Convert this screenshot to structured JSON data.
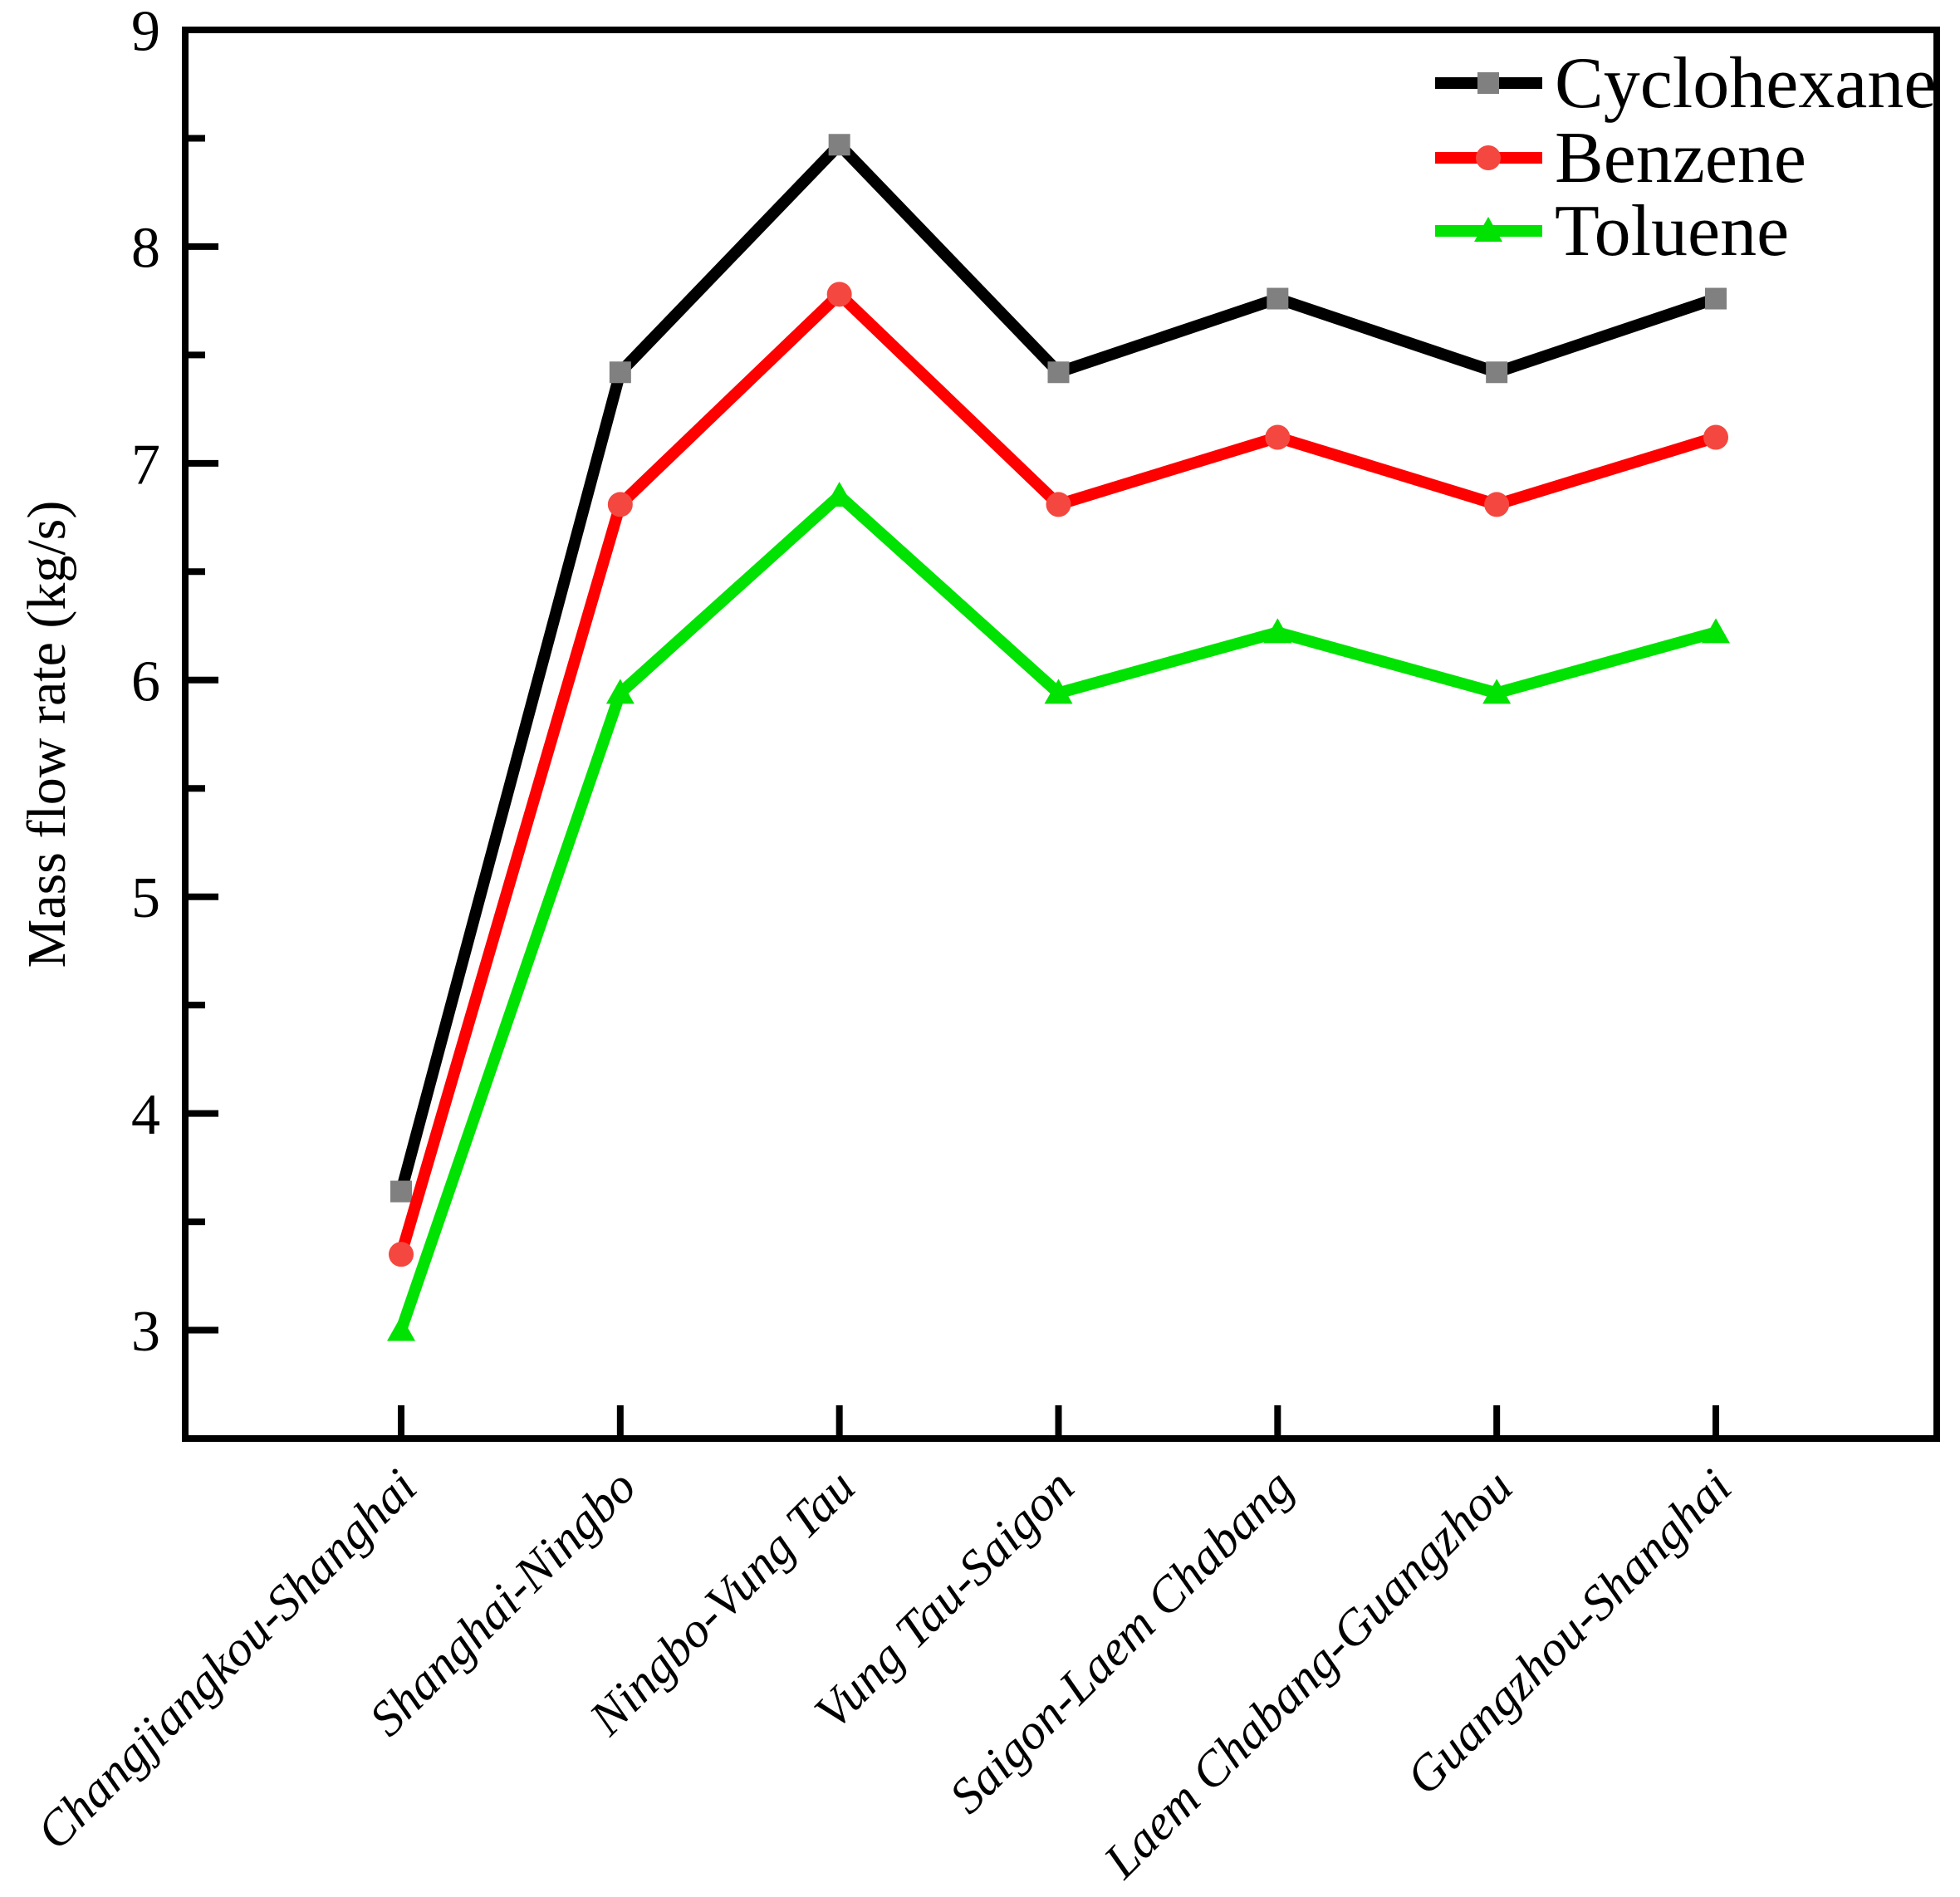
{
  "figure": {
    "background": "#ffffff",
    "frame_color": "#000000"
  },
  "chart_data": {
    "type": "line",
    "title": "",
    "xlabel": "",
    "ylabel": "Mass flow rate (kg/s)",
    "ylim": [
      2.5,
      9
    ],
    "yticks_major": [
      3,
      4,
      5,
      6,
      7,
      8,
      9
    ],
    "yticks_minor": [
      3.5,
      4.5,
      5.5,
      6.5,
      7.5,
      8.5
    ],
    "grid": false,
    "legend_position": "top-right",
    "categories": [
      "Changjiangkou-Shanghai",
      "Shanghai-Ningbo",
      "Ningbo-Vung Tau",
      "Vung Tau-Saigon",
      "Saigon-Laem Chabang",
      "Laem Chabang-Guangzhou",
      "Guangzhou-Shanghai"
    ],
    "series": [
      {
        "name": "Cyclohexane",
        "line_color": "#000000",
        "marker": "square",
        "marker_color": "#808080",
        "values": [
          3.64,
          7.42,
          8.47,
          7.42,
          7.76,
          7.42,
          7.76
        ]
      },
      {
        "name": "Benzene",
        "line_color": "#ff0000",
        "marker": "circle",
        "marker_color": "#f4473f",
        "values": [
          3.35,
          6.81,
          7.78,
          6.81,
          7.12,
          6.81,
          7.12
        ]
      },
      {
        "name": "Toluene",
        "line_color": "#00e202",
        "marker": "triangle",
        "marker_color": "#00e202",
        "values": [
          3.0,
          5.94,
          6.85,
          5.94,
          6.22,
          5.94,
          6.22
        ]
      }
    ]
  }
}
